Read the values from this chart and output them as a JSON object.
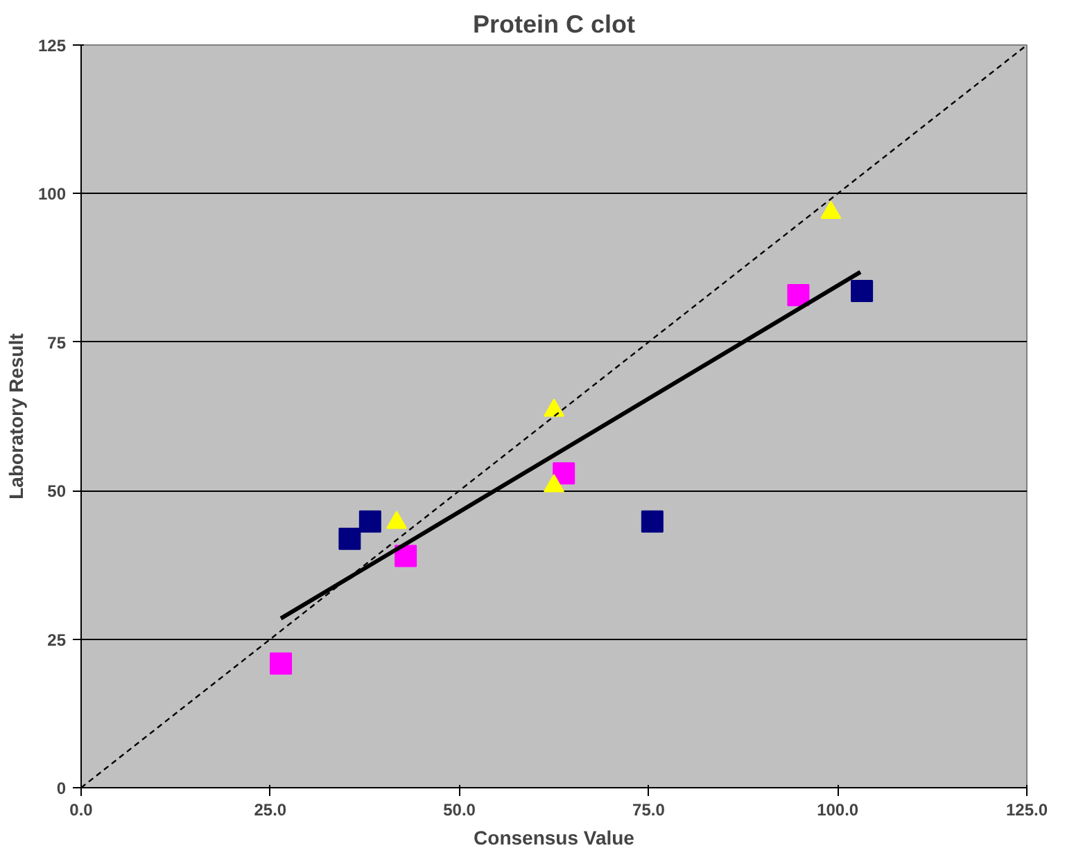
{
  "chart_data": {
    "type": "scatter",
    "title": "Protein C clot",
    "xlabel": "Consensus Value",
    "ylabel": "Laboratory Result",
    "xlim": [
      0,
      125
    ],
    "ylim": [
      0,
      125
    ],
    "xticks": [
      {
        "value": 0,
        "label": "0.0"
      },
      {
        "value": 25,
        "label": "25.0"
      },
      {
        "value": 50,
        "label": "50.0"
      },
      {
        "value": 75,
        "label": "75.0"
      },
      {
        "value": 100,
        "label": "100.0"
      },
      {
        "value": 125,
        "label": "125.0"
      }
    ],
    "yticks": [
      0,
      25,
      50,
      75,
      100,
      125
    ],
    "grid": "y",
    "series": [
      {
        "color": "#000080",
        "marker": "square",
        "x": [
          35.5,
          38.2,
          75.5,
          103.2
        ],
        "values": [
          41.9,
          44.8,
          44.8,
          83.6
        ]
      },
      {
        "color": "#ff00ff",
        "marker": "square",
        "x": [
          26.4,
          42.9,
          63.8,
          94.8
        ],
        "values": [
          20.9,
          39,
          52.9,
          82.9
        ]
      },
      {
        "color": "#ffff00",
        "marker": "triangle",
        "x": [
          41.7,
          62.5,
          62.5,
          99.1
        ],
        "values": [
          44.6,
          63.5,
          50.8,
          96.8
        ]
      },
      {
        "type": "line",
        "color": "#000000",
        "line_style": "solid",
        "marker": "none",
        "x": [
          26.4,
          46.8,
          103
        ],
        "values": [
          28.5,
          44,
          86.8
        ]
      },
      {
        "type": "line",
        "color": "#000000",
        "line_style": "dashed",
        "marker": "none",
        "x": [
          0,
          125
        ],
        "values": [
          0,
          125
        ]
      }
    ]
  }
}
